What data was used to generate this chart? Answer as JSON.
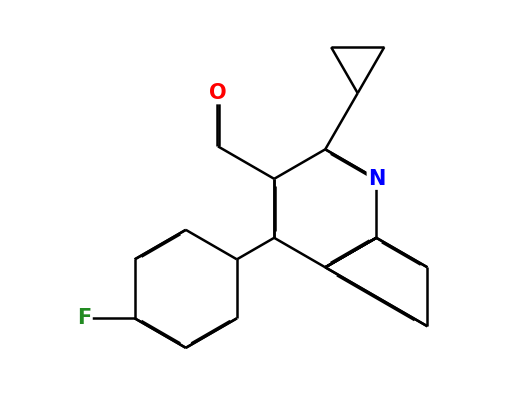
{
  "bg_color": "#ffffff",
  "bond_color": "#000000",
  "bond_width": 1.8,
  "dbo": 0.018,
  "atom_colors": {
    "O": "#ff0000",
    "N": "#0000ff",
    "F": "#228B22"
  },
  "figsize": [
    5.12,
    3.95
  ],
  "dpi": 100
}
